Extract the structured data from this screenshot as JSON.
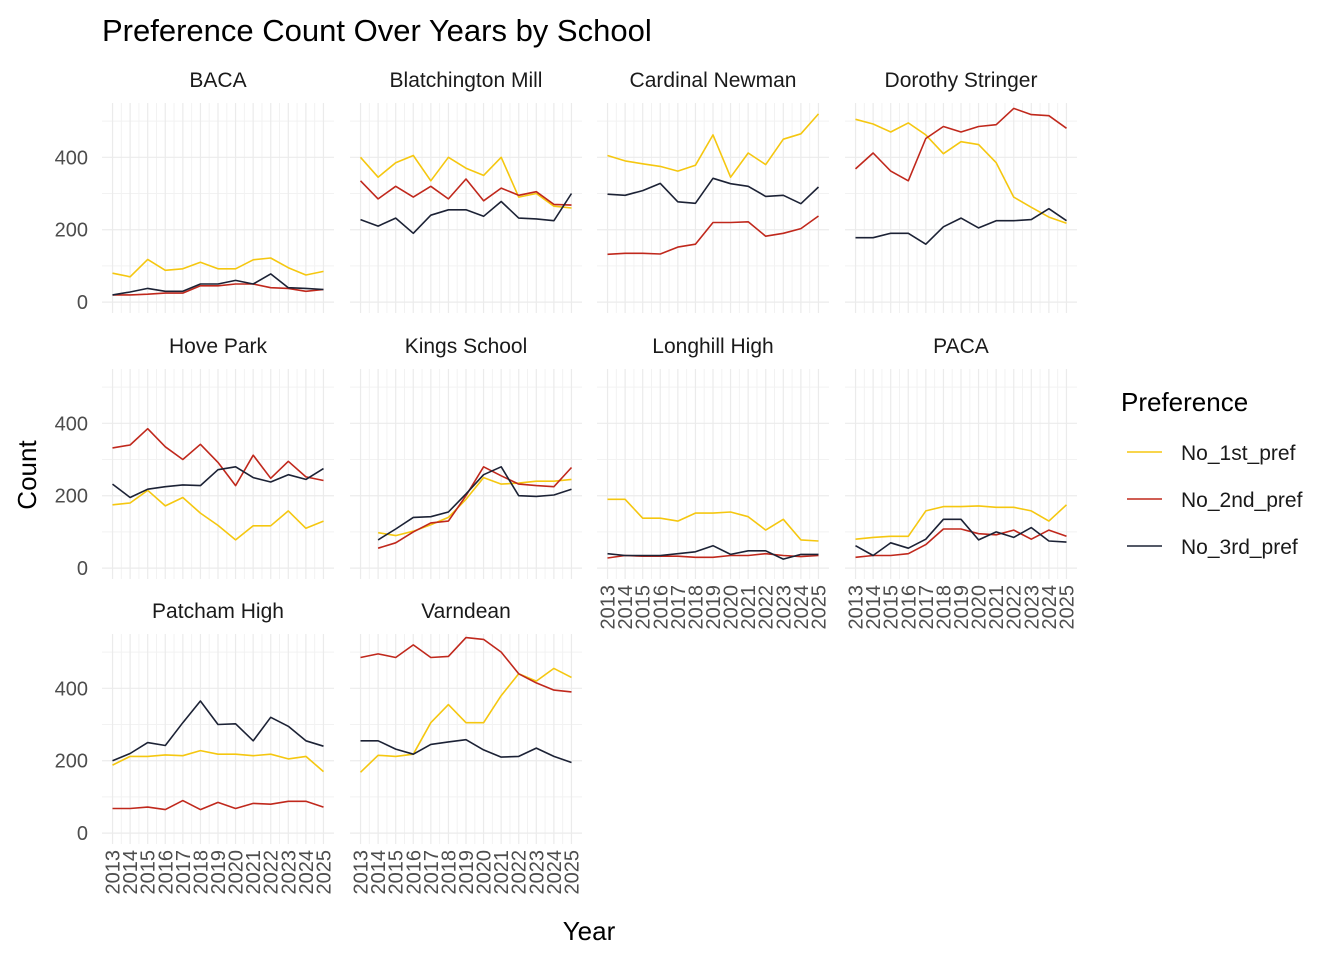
{
  "chart_data": {
    "type": "line",
    "title": "Preference Count Over Years by School",
    "xlabel": "Year",
    "ylabel": "Count",
    "x": [
      2013,
      2014,
      2015,
      2016,
      2017,
      2018,
      2019,
      2020,
      2021,
      2022,
      2023,
      2024,
      2025
    ],
    "x_tick_labels": [
      "2013",
      "2014",
      "2015",
      "2016",
      "2017",
      "2018",
      "2019",
      "2020",
      "2021",
      "2022",
      "2023",
      "2024",
      "2025"
    ],
    "ylim": [
      0,
      550
    ],
    "y_ticks": [
      0,
      200,
      400
    ],
    "y_tick_labels": [
      "0",
      "200",
      "400"
    ],
    "grid": true,
    "legend": {
      "title": "Preference",
      "placement": "right",
      "entries": [
        "No_1st_pref",
        "No_2nd_pref",
        "No_3rd_pref"
      ]
    },
    "series_colors": {
      "No_1st_pref": "#F5C710",
      "No_2nd_pref": "#C0281C",
      "No_3rd_pref": "#1C2235"
    },
    "facets": [
      {
        "name": "BACA",
        "series": [
          {
            "name": "No_1st_pref",
            "values": [
              80,
              70,
              118,
              88,
              92,
              110,
              92,
              92,
              117,
              122,
              95,
              75,
              85
            ]
          },
          {
            "name": "No_2nd_pref",
            "values": [
              20,
              20,
              22,
              25,
              25,
              45,
              45,
              50,
              50,
              40,
              38,
              30,
              35
            ]
          },
          {
            "name": "No_3rd_pref",
            "values": [
              20,
              28,
              38,
              30,
              30,
              50,
              50,
              60,
              50,
              78,
              40,
              38,
              35
            ]
          }
        ]
      },
      {
        "name": "Blatchington Mill",
        "series": [
          {
            "name": "No_1st_pref",
            "values": [
              400,
              345,
              385,
              405,
              335,
              400,
              370,
              350,
              400,
              290,
              300,
              265,
              260
            ]
          },
          {
            "name": "No_2nd_pref",
            "values": [
              335,
              285,
              320,
              290,
              320,
              285,
              340,
              280,
              315,
              295,
              305,
              270,
              268
            ]
          },
          {
            "name": "No_3rd_pref",
            "values": [
              228,
              210,
              232,
              190,
              240,
              255,
              255,
              237,
              278,
              232,
              230,
              225,
              300
            ]
          }
        ]
      },
      {
        "name": "Cardinal Newman",
        "series": [
          {
            "name": "No_1st_pref",
            "values": [
              405,
              390,
              382,
              375,
              362,
              378,
              462,
              345,
              412,
              380,
              450,
              465,
              520
            ]
          },
          {
            "name": "No_2nd_pref",
            "values": [
              132,
              135,
              135,
              133,
              152,
              160,
              220,
              220,
              222,
              182,
              190,
              203,
              238
            ]
          },
          {
            "name": "No_3rd_pref",
            "values": [
              298,
              295,
              308,
              328,
              277,
              273,
              342,
              327,
              320,
              292,
              295,
              272,
              318
            ]
          }
        ]
      },
      {
        "name": "Dorothy Stringer",
        "series": [
          {
            "name": "No_1st_pref",
            "values": [
              505,
              492,
              470,
              495,
              462,
              410,
              443,
              435,
              385,
              290,
              262,
              235,
              218
            ]
          },
          {
            "name": "No_2nd_pref",
            "values": [
              368,
              412,
              362,
              335,
              452,
              485,
              470,
              485,
              490,
              535,
              518,
              515,
              480
            ]
          },
          {
            "name": "No_3rd_pref",
            "values": [
              178,
              178,
              190,
              190,
              160,
              208,
              232,
              205,
              225,
              225,
              228,
              258,
              225
            ]
          }
        ]
      },
      {
        "name": "Hove Park",
        "series": [
          {
            "name": "No_1st_pref",
            "values": [
              175,
              180,
              215,
              172,
              195,
              152,
              118,
              78,
              117,
              117,
              158,
              110,
              130
            ]
          },
          {
            "name": "No_2nd_pref",
            "values": [
              332,
              340,
              385,
              335,
              300,
              342,
              292,
              228,
              312,
              248,
              295,
              252,
              242
            ]
          },
          {
            "name": "No_3rd_pref",
            "values": [
              232,
              195,
              218,
              225,
              230,
              228,
              272,
              280,
              250,
              238,
              258,
              245,
              275
            ]
          }
        ]
      },
      {
        "name": "Kings School",
        "series": [
          {
            "name": "No_1st_pref",
            "values": [
              null,
              98,
              90,
              102,
              120,
              140,
              190,
              250,
              232,
              235,
              240,
              240,
              245
            ]
          },
          {
            "name": "No_2nd_pref",
            "values": [
              null,
              55,
              70,
              100,
              125,
              130,
              200,
              280,
              255,
              232,
              228,
              225,
              278
            ]
          },
          {
            "name": "No_3rd_pref",
            "values": [
              null,
              78,
              108,
              140,
              142,
              155,
              205,
              258,
              280,
              200,
              198,
              202,
              218
            ]
          }
        ]
      },
      {
        "name": "Longhill High",
        "series": [
          {
            "name": "No_1st_pref",
            "values": [
              190,
              190,
              138,
              138,
              130,
              152,
              152,
              155,
              142,
              105,
              135,
              78,
              75
            ]
          },
          {
            "name": "No_2nd_pref",
            "values": [
              28,
              35,
              33,
              33,
              33,
              30,
              30,
              35,
              35,
              40,
              35,
              32,
              35
            ]
          },
          {
            "name": "No_3rd_pref",
            "values": [
              40,
              35,
              35,
              35,
              40,
              45,
              62,
              38,
              48,
              48,
              25,
              38,
              38
            ]
          }
        ]
      },
      {
        "name": "PACA",
        "series": [
          {
            "name": "No_1st_pref",
            "values": [
              80,
              85,
              88,
              88,
              158,
              170,
              170,
              172,
              168,
              168,
              158,
              130,
              175
            ]
          },
          {
            "name": "No_2nd_pref",
            "values": [
              30,
              35,
              35,
              40,
              65,
              108,
              108,
              95,
              92,
              105,
              80,
              105,
              88
            ]
          },
          {
            "name": "No_3rd_pref",
            "values": [
              62,
              35,
              70,
              55,
              80,
              135,
              135,
              78,
              100,
              85,
              112,
              75,
              72
            ]
          }
        ]
      },
      {
        "name": "Patcham High",
        "series": [
          {
            "name": "No_1st_pref",
            "values": [
              188,
              212,
              212,
              216,
              214,
              228,
              218,
              218,
              214,
              218,
              205,
              212,
              170
            ]
          },
          {
            "name": "No_2nd_pref",
            "values": [
              68,
              68,
              72,
              65,
              90,
              65,
              85,
              68,
              82,
              80,
              88,
              88,
              72
            ]
          },
          {
            "name": "No_3rd_pref",
            "values": [
              200,
              220,
              250,
              242,
              305,
              365,
              300,
              302,
              255,
              320,
              295,
              255,
              240
            ]
          }
        ]
      },
      {
        "name": "Varndean",
        "series": [
          {
            "name": "No_1st_pref",
            "values": [
              168,
              215,
              212,
              218,
              305,
              355,
              305,
              305,
              380,
              440,
              420,
              455,
              430
            ]
          },
          {
            "name": "No_2nd_pref",
            "values": [
              485,
              495,
              485,
              520,
              485,
              488,
              540,
              535,
              500,
              440,
              415,
              395,
              390
            ]
          },
          {
            "name": "No_3rd_pref",
            "values": [
              255,
              255,
              232,
              218,
              245,
              252,
              258,
              230,
              210,
              212,
              235,
              212,
              195
            ]
          }
        ]
      }
    ]
  }
}
